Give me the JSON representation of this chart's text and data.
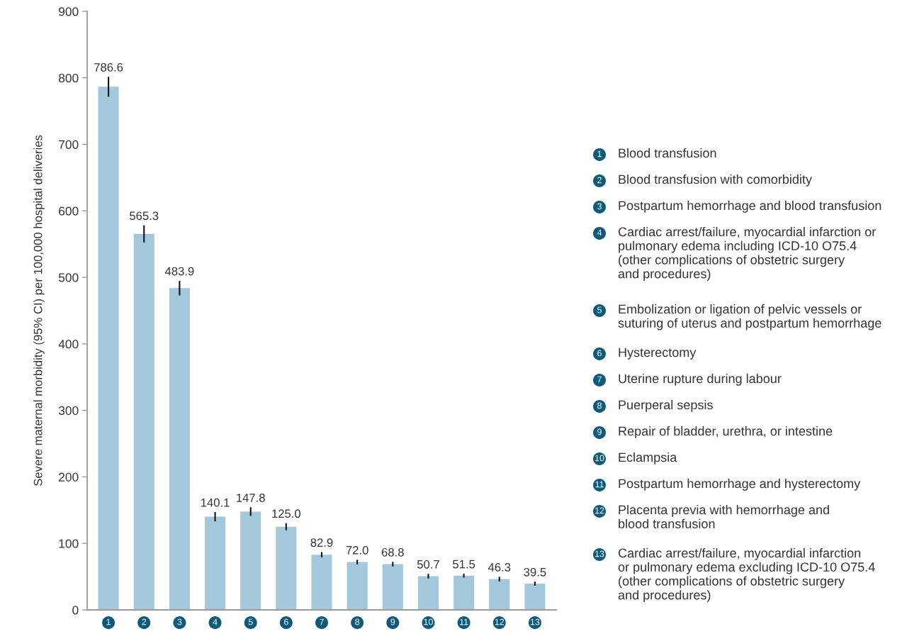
{
  "chart_data": {
    "type": "bar",
    "ylabel": "Severe maternal morbidity (95% CI) per 100,000 hospital deliveries",
    "categories": [
      "1",
      "2",
      "3",
      "4",
      "5",
      "6",
      "7",
      "8",
      "9",
      "10",
      "11",
      "12",
      "13"
    ],
    "values": [
      786.6,
      565.3,
      483.9,
      140.1,
      147.8,
      125.0,
      82.9,
      72.0,
      68.8,
      50.7,
      51.5,
      46.3,
      39.5
    ],
    "errors": [
      15,
      13,
      11,
      7,
      6.5,
      5.5,
      4,
      3.5,
      3.5,
      3.5,
      3,
      3.5,
      3
    ],
    "color": "#a3c8dc",
    "ylim": [
      0,
      900
    ],
    "yticks": [
      0,
      100,
      200,
      300,
      400,
      500,
      600,
      700,
      800,
      900
    ],
    "grid": false,
    "value_labels": [
      "786.6",
      "565.3",
      "483.9",
      "140.1",
      "147.8",
      "125.0",
      "82.9",
      "72.0",
      "68.8",
      "50.7",
      "51.5",
      "46.3",
      "39.5"
    ],
    "annotations": [
      "Blood transfusion",
      "Blood transfusion with comorbidity",
      "Postpartum hemorrhage and blood transfusion",
      "Cardiac arrest/failure, myocardial infarction or\npulmonary edema including ICD-10 O75.4\n(other complications of obstetric surgery\nand procedures)",
      "Embolization or ligation of pelvic vessels or\nsuturing of uterus and postpartum hemorrhage",
      "Hysterectomy",
      "Uterine rupture during labour",
      "Puerperal sepsis",
      "Repair of bladder, urethra, or intestine",
      "Eclampsia",
      "Postpartum hemorrhage and hysterectomy",
      "Placenta previa with hemorrhage and\nblood transfusion",
      "Cardiac arrest/failure, myocardial infarction\nor pulmonary edema excluding ICD-10 O75.4\n(other complications of obstetric surgery\nand procedures)"
    ]
  }
}
